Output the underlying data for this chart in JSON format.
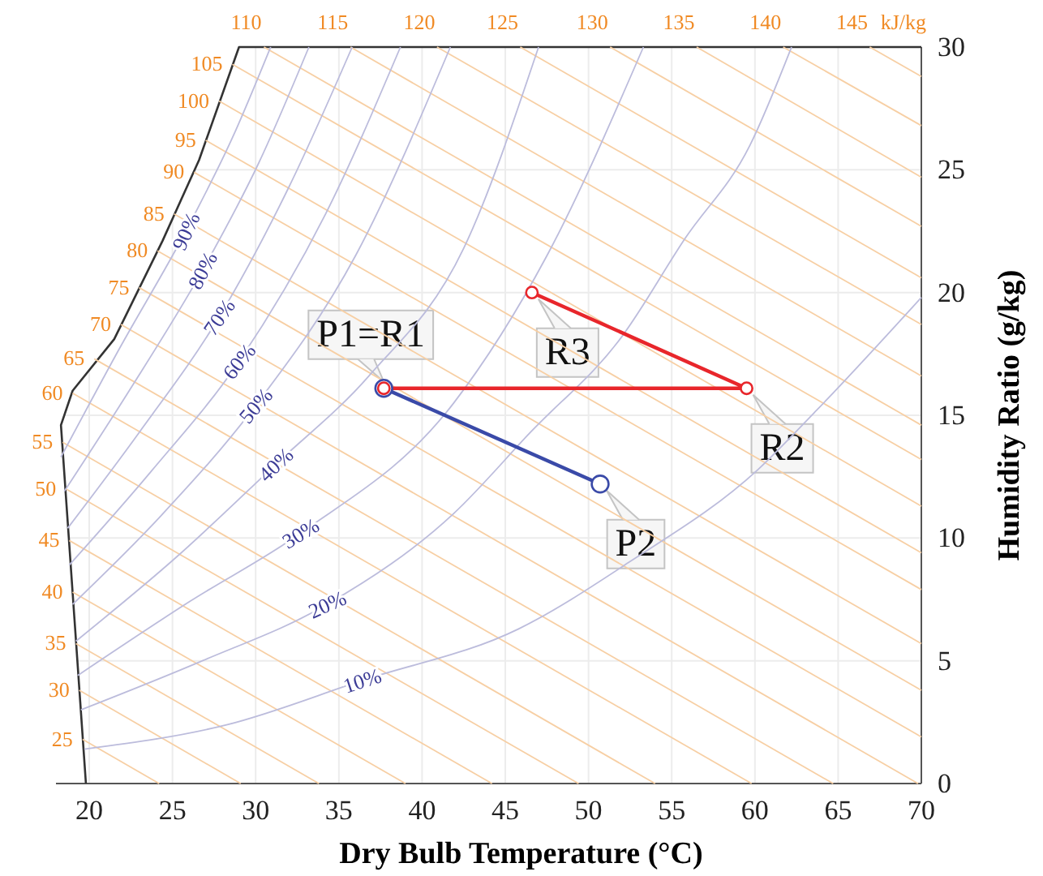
{
  "chart_data": {
    "type": "line",
    "xlabel": "Dry Bulb Temperature (°C)",
    "ylabel": "Humidity Ratio (g/kg)",
    "xlim": [
      18,
      70
    ],
    "ylim": [
      0,
      30
    ],
    "xticks": [
      20,
      25,
      30,
      35,
      40,
      45,
      50,
      55,
      60,
      65,
      70
    ],
    "yticks": [
      0,
      5,
      10,
      15,
      20,
      25,
      30
    ],
    "grid": true,
    "series": [
      {
        "color": "#333333",
        "x": [
          19.8,
          18.3,
          19.0,
          21.5,
          24.4,
          26.6,
          29.0,
          70
        ],
        "values": [
          0,
          14.6,
          16.0,
          18.1,
          22.1,
          25.4,
          30,
          30
        ]
      },
      {
        "name": "105",
        "color": "#f7cfa4",
        "x": [
          28.6,
          70
        ],
        "values": [
          29.3,
          13.2
        ]
      },
      {
        "name": "100",
        "color": "#f7cfa4",
        "x": [
          27.8,
          70
        ],
        "values": [
          27.8,
          11.3
        ]
      },
      {
        "name": "95",
        "color": "#f7cfa4",
        "x": [
          27.0,
          70
        ],
        "values": [
          26.2,
          9.4
        ]
      },
      {
        "name": "90",
        "color": "#f7cfa4",
        "x": [
          26.3,
          70
        ],
        "values": [
          24.9,
          7.9
        ]
      },
      {
        "name": "85",
        "color": "#f7cfa4",
        "x": [
          25.1,
          70
        ],
        "values": [
          23.2,
          5.7
        ]
      },
      {
        "name": "80",
        "color": "#f7cfa4",
        "x": [
          24.1,
          70
        ],
        "values": [
          21.7,
          3.8
        ]
      },
      {
        "name": "75",
        "color": "#f7cfa4",
        "x": [
          23.0,
          70
        ],
        "values": [
          20.2,
          1.9
        ]
      },
      {
        "name": "70",
        "color": "#f7cfa4",
        "x": [
          21.9,
          69.8
        ],
        "values": [
          18.7,
          0
        ]
      },
      {
        "name": "65",
        "color": "#f7cfa4",
        "x": [
          20.3,
          64.7
        ],
        "values": [
          17.3,
          0
        ]
      },
      {
        "name": "60",
        "color": "#f7cfa4",
        "x": [
          19.0,
          59.8
        ],
        "values": [
          15.9,
          0
        ]
      },
      {
        "name": "55",
        "color": "#f7cfa4",
        "x": [
          18.4,
          54.0
        ],
        "values": [
          13.9,
          0
        ]
      },
      {
        "name": "50",
        "color": "#f7cfa4",
        "x": [
          18.6,
          49.4
        ],
        "values": [
          12.0,
          0
        ]
      },
      {
        "name": "45",
        "color": "#f7cfa4",
        "x": [
          18.8,
          44.2
        ],
        "values": [
          9.9,
          0
        ]
      },
      {
        "name": "40",
        "color": "#f7cfa4",
        "x": [
          19.0,
          39.0
        ],
        "values": [
          7.8,
          0
        ]
      },
      {
        "name": "35",
        "color": "#f7cfa4",
        "x": [
          19.2,
          33.8
        ],
        "values": [
          5.7,
          0
        ]
      },
      {
        "name": "30",
        "color": "#f7cfa4",
        "x": [
          19.4,
          29.1
        ],
        "values": [
          3.8,
          0
        ]
      },
      {
        "name": "25",
        "color": "#f7cfa4",
        "x": [
          19.6,
          24.2
        ],
        "values": [
          1.8,
          0
        ]
      },
      {
        "name": "110",
        "color": "#f7cfa4",
        "x": [
          30.5,
          70
        ],
        "values": [
          30,
          14.6
        ]
      },
      {
        "name": "115",
        "color": "#f7cfa4",
        "x": [
          35.7,
          70
        ],
        "values": [
          30,
          16.6
        ]
      },
      {
        "name": "120",
        "color": "#f7cfa4",
        "x": [
          40.9,
          70
        ],
        "values": [
          30,
          18.7
        ]
      },
      {
        "name": "125",
        "color": "#f7cfa4",
        "x": [
          45.9,
          70
        ],
        "values": [
          30,
          20.6
        ]
      },
      {
        "name": "130",
        "color": "#f7cfa4",
        "x": [
          51.3,
          70
        ],
        "values": [
          30,
          22.7
        ]
      },
      {
        "name": "135",
        "color": "#f7cfa4",
        "x": [
          56.5,
          70
        ],
        "values": [
          30,
          24.7
        ]
      },
      {
        "name": "140",
        "color": "#f7cfa4",
        "x": [
          61.7,
          70
        ],
        "values": [
          30,
          26.8
        ]
      },
      {
        "name": "145",
        "color": "#f7cfa4",
        "x": [
          66.9,
          70
        ],
        "values": [
          30,
          28.8
        ]
      },
      {
        "color": "#bcbcdc",
        "x": [
          19.7,
          28.3,
          36.4,
          45.8,
          52.4,
          60.2,
          63.7,
          70
        ],
        "values": [
          1.4,
          2.4,
          4.2,
          6.3,
          9.0,
          12.8,
          15.2,
          19.8
        ]
      },
      {
        "color": "#bcbcdc",
        "x": [
          19.5,
          26.8,
          34.3,
          41.9,
          46.5,
          52.0,
          55.8,
          59.7,
          62.2
        ],
        "values": [
          3.0,
          5.0,
          7.3,
          11.0,
          14.3,
          18.2,
          22.2,
          26.0,
          30
        ]
      },
      {
        "color": "#bcbcdc",
        "x": [
          19.3,
          26.0,
          32.7,
          41.9,
          47.5,
          53.3
        ],
        "values": [
          4.4,
          7.4,
          10.2,
          15.5,
          21.5,
          30
        ]
      },
      {
        "color": "#bcbcdc",
        "x": [
          19.2,
          25.2,
          31.2,
          36.8,
          42.5,
          47.0
        ],
        "values": [
          5.8,
          9.2,
          13.0,
          16.6,
          21.8,
          30
        ]
      },
      {
        "color": "#bcbcdc",
        "x": [
          19.0,
          24.3,
          30.0,
          36.0,
          41.7
        ],
        "values": [
          7.3,
          10.9,
          15.4,
          21.5,
          30
        ]
      },
      {
        "color": "#bcbcdc",
        "x": [
          18.8,
          23.7,
          29.0,
          34.2,
          38.7
        ],
        "values": [
          8.9,
          12.7,
          17.2,
          23.2,
          30
        ]
      },
      {
        "color": "#bcbcdc",
        "x": [
          18.7,
          23.0,
          27.8,
          32.0,
          35.8
        ],
        "values": [
          10.4,
          14.3,
          19.0,
          24.3,
          30
        ]
      },
      {
        "color": "#bcbcdc",
        "x": [
          18.5,
          22.4,
          26.8,
          30.2,
          33.2
        ],
        "values": [
          11.9,
          16.0,
          20.9,
          25.3,
          30
        ]
      },
      {
        "color": "#bcbcdc",
        "x": [
          18.3,
          21.8,
          25.8,
          28.6,
          30.9
        ],
        "values": [
          13.3,
          17.7,
          22.5,
          26.3,
          30
        ]
      },
      {
        "color": "#3a4aa8",
        "marker": "circle",
        "x": [
          37.7,
          50.7
        ],
        "values": [
          16.1,
          12.2
        ]
      },
      {
        "color": "#e8262b",
        "marker": "circle",
        "x": [
          37.7,
          59.5,
          46.6
        ],
        "values": [
          16.1,
          16.1,
          20.0
        ]
      }
    ],
    "annotations": [
      "kJ/kg",
      {
        "text": "P1=R1",
        "x": 37.7,
        "y": 16.1
      },
      {
        "text": "R2",
        "x": 59.5,
        "y": 16.1
      },
      {
        "text": "R3",
        "x": 46.6,
        "y": 20.0
      },
      {
        "text": "P2",
        "x": 50.7,
        "y": 12.2
      },
      {
        "text": "10%",
        "x": 36.4,
        "y": 4.2
      },
      {
        "text": "20%",
        "x": 34.3,
        "y": 7.3
      },
      {
        "text": "30%",
        "x": 32.7,
        "y": 10.2
      },
      {
        "text": "40%",
        "x": 31.2,
        "y": 13.0
      },
      {
        "text": "50%",
        "x": 30.0,
        "y": 15.4
      },
      {
        "text": "60%",
        "x": 29.0,
        "y": 17.2
      },
      {
        "text": "70%",
        "x": 27.8,
        "y": 19.0
      },
      {
        "text": "80%",
        "x": 26.8,
        "y": 20.9
      },
      {
        "text": "90%",
        "x": 25.8,
        "y": 22.5
      }
    ]
  }
}
